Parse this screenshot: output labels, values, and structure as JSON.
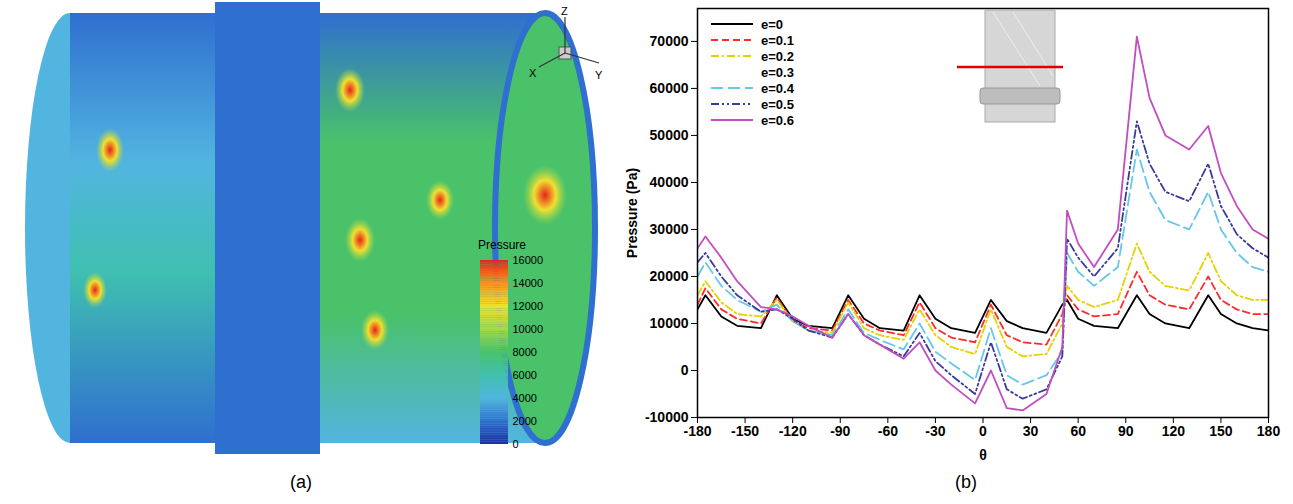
{
  "chart_data": [
    {
      "type": "contour_render",
      "label": "(a)",
      "axes_labels": [
        "X",
        "Y",
        "Z"
      ],
      "colorbar": {
        "title": "Pressure",
        "range": [
          0,
          16000
        ],
        "ticks": [
          0,
          2000,
          4000,
          6000,
          8000,
          10000,
          12000,
          14000,
          16000
        ],
        "colors": [
          "#1f2fa0",
          "#2f6fd0",
          "#52b5e0",
          "#3fc0b0",
          "#49c26a",
          "#a6d84a",
          "#f0e030",
          "#f7941d",
          "#e8231c"
        ]
      }
    },
    {
      "type": "line",
      "label": "(b)",
      "xlabel": "θ",
      "ylabel": "Pressure (Pa)",
      "xlim": [
        -180,
        180
      ],
      "xticks": [
        -180,
        -150,
        -120,
        -90,
        -60,
        -30,
        0,
        30,
        60,
        90,
        120,
        150,
        180
      ],
      "ylim": [
        -10000,
        77000
      ],
      "yticks": [
        -10000,
        0,
        10000,
        20000,
        30000,
        40000,
        50000,
        60000,
        70000
      ],
      "legend": "upper left",
      "x": [
        -180,
        -175,
        -165,
        -155,
        -140,
        -130,
        -120,
        -110,
        -95,
        -85,
        -75,
        -65,
        -50,
        -40,
        -30,
        -20,
        -5,
        5,
        15,
        25,
        40,
        50,
        53,
        60,
        70,
        85,
        97,
        105,
        115,
        130,
        142,
        150,
        160,
        170,
        180
      ],
      "series": [
        {
          "name": "e=0",
          "color": "#000000",
          "line_style": "solid",
          "values": [
            13000,
            16000,
            11500,
            9500,
            9000,
            16000,
            11000,
            9500,
            9000,
            16000,
            11000,
            9000,
            8500,
            16000,
            11000,
            9000,
            8000,
            15000,
            10500,
            9000,
            8000,
            14000,
            15000,
            11000,
            9500,
            9000,
            16000,
            12000,
            10000,
            9000,
            16000,
            12000,
            10000,
            9000,
            8500
          ]
        },
        {
          "name": "e=0.1",
          "color": "#ff2a2a",
          "line_style": "dashed",
          "values": [
            14000,
            17500,
            13000,
            11000,
            10000,
            15500,
            10500,
            9000,
            8500,
            15000,
            10000,
            8500,
            7500,
            14500,
            9000,
            7000,
            6000,
            14000,
            7500,
            6000,
            5500,
            12000,
            16000,
            13000,
            11500,
            12000,
            21000,
            16000,
            14000,
            13000,
            20000,
            15000,
            13000,
            12000,
            12000
          ]
        },
        {
          "name": "e=0.2",
          "color": "#e6d200",
          "line_style": "dashdot",
          "values": [
            16000,
            19000,
            14500,
            12000,
            11500,
            15000,
            10500,
            8500,
            8000,
            14500,
            9000,
            7500,
            6500,
            13000,
            7500,
            5000,
            3500,
            13000,
            5000,
            3000,
            3500,
            10000,
            18000,
            15000,
            13500,
            15000,
            27000,
            21000,
            18000,
            17000,
            25000,
            19000,
            16000,
            15000,
            15000
          ]
        },
        {
          "name": "e=0.3",
          "color": "#ffffff",
          "line_style": "solid",
          "values": [
            null,
            null,
            null,
            null,
            null,
            null,
            null,
            null,
            null,
            null,
            null,
            null,
            null,
            null,
            null,
            null,
            null,
            null,
            null,
            null,
            null,
            null,
            null,
            null,
            null,
            null,
            null,
            null,
            null,
            null,
            null,
            null,
            null,
            null,
            null
          ]
        },
        {
          "name": "e=0.4",
          "color": "#66c7e8",
          "line_style": "longdash",
          "values": [
            20000,
            23000,
            18000,
            15000,
            12500,
            14000,
            10500,
            8500,
            7500,
            13000,
            8000,
            6500,
            4500,
            10000,
            4000,
            1500,
            -2000,
            9000,
            -1000,
            -3000,
            -1000,
            4000,
            25000,
            21000,
            18000,
            22000,
            47000,
            38000,
            32000,
            30000,
            38000,
            30000,
            25000,
            22000,
            21000
          ]
        },
        {
          "name": "e=0.5",
          "color": "#3a3a9a",
          "line_style": "dashdotdot",
          "values": [
            23000,
            25000,
            20000,
            16000,
            12500,
            13000,
            11000,
            8500,
            7000,
            12000,
            7500,
            5500,
            3000,
            8000,
            2000,
            -1000,
            -5000,
            6000,
            -4000,
            -6000,
            -4000,
            3000,
            28000,
            24000,
            20000,
            26000,
            53000,
            44000,
            38000,
            36000,
            44000,
            35000,
            29000,
            26000,
            24000
          ]
        },
        {
          "name": "e=0.6",
          "color": "#c04ec0",
          "line_style": "solid",
          "values": [
            26000,
            28500,
            24000,
            19000,
            13500,
            13000,
            11500,
            9500,
            7000,
            12000,
            7500,
            5500,
            2500,
            6000,
            0,
            -3000,
            -7000,
            0,
            -8000,
            -8500,
            -5000,
            5000,
            34000,
            27000,
            22000,
            30000,
            71000,
            58000,
            50000,
            47000,
            52000,
            42000,
            35000,
            30000,
            28000
          ]
        }
      ]
    }
  ]
}
